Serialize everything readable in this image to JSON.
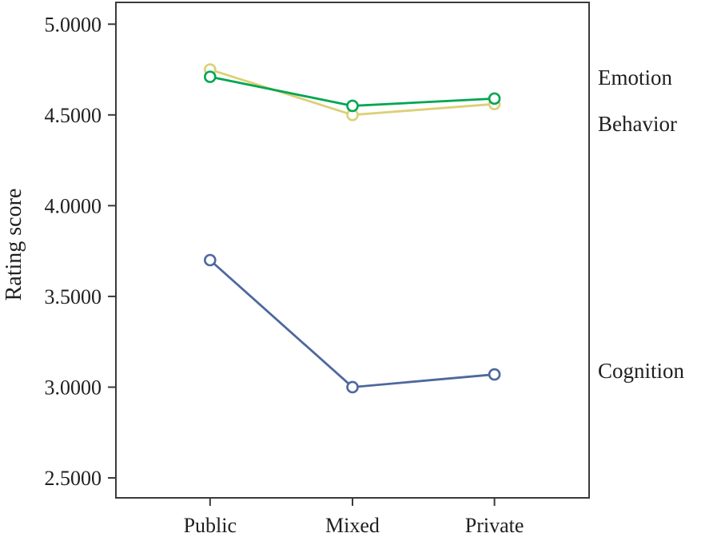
{
  "figure": {
    "ylabel": "Rating score"
  },
  "chart_data": {
    "type": "line",
    "title": "",
    "xlabel": "",
    "ylabel": "Rating score",
    "categories": [
      "Public",
      "Mixed",
      "Private"
    ],
    "series": [
      {
        "name": "Behavior",
        "color": "#dcd078",
        "values": [
          4.75,
          4.5,
          4.56
        ]
      },
      {
        "name": "Emotion",
        "color": "#00a651",
        "values": [
          4.71,
          4.55,
          4.59
        ]
      },
      {
        "name": "Cognition",
        "color": "#4d689e",
        "values": [
          3.7,
          3.0,
          3.07
        ]
      }
    ],
    "yticks": [
      2.5,
      3.0,
      3.5,
      4.0,
      4.5,
      5.0
    ],
    "ytick_labels": [
      "2.5000",
      "3.0000",
      "3.5000",
      "4.0000",
      "4.5000",
      "5.0000"
    ],
    "ylim": [
      2.39,
      5.12
    ],
    "grid": false,
    "legend_position": "right-margin",
    "marker": "open-circle",
    "frame_color": "#3a3a3a",
    "text_color": "#1f1f1f"
  }
}
